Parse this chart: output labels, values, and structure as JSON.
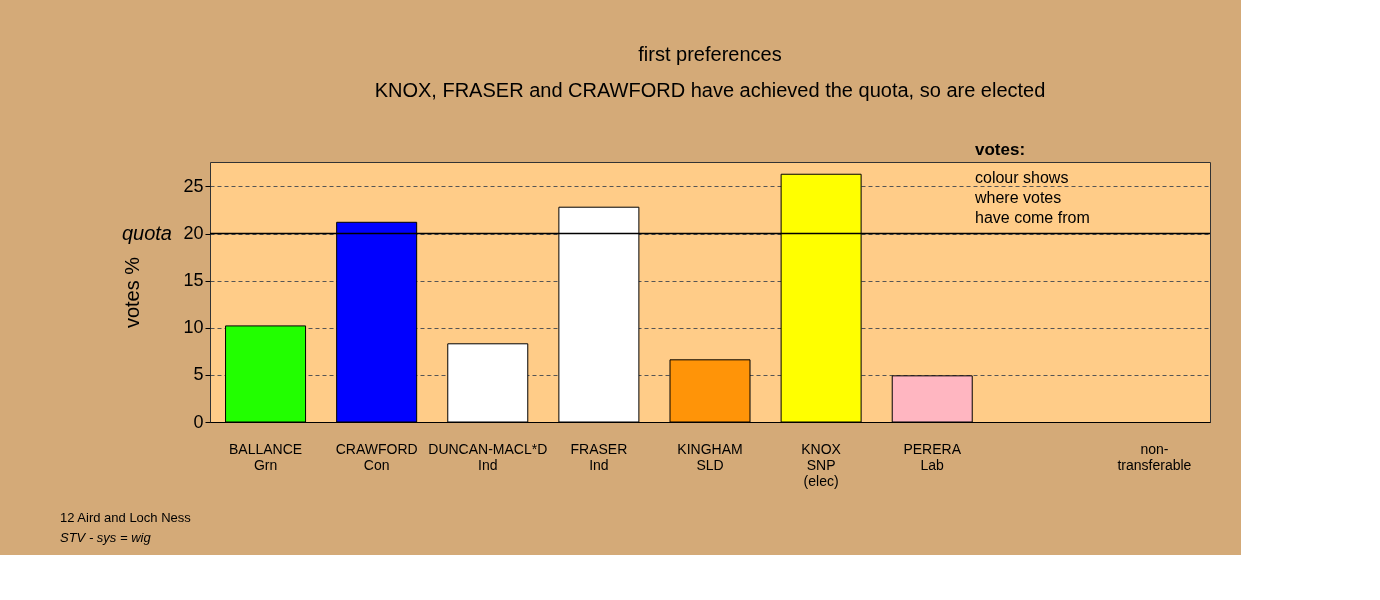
{
  "chart_data": {
    "type": "bar",
    "title": "first preferences",
    "subtitle": "KNOX, FRASER and CRAWFORD have achieved the quota, so are elected",
    "ylabel": "votes %",
    "categories": [
      "BALLANCE\nGrn",
      "CRAWFORD\nCon",
      "DUNCAN-MACL*D\nInd",
      "FRASER\nInd",
      "KINGHAM\nSLD",
      "KNOX\nSNP\n(elec)",
      "PERERA\nLab",
      null,
      "non-\ntransferable"
    ],
    "values": [
      10.2,
      21.2,
      8.3,
      22.8,
      6.6,
      26.3,
      4.9,
      null,
      null
    ],
    "colors": [
      "#22ff00",
      "#0000ff",
      "#ffffff",
      "#ffffff",
      "#ff9408",
      "#ffff00",
      "#ffb6c1",
      "#ffffff",
      "#ffffff"
    ],
    "ylim": [
      0,
      27.6
    ],
    "yticks": [
      0,
      5,
      10,
      15,
      20,
      25
    ],
    "grid": "y",
    "ref_lines": [
      {
        "axis": "y",
        "value": 20,
        "label": "quota",
        "color": "#000000",
        "line_style": "solid"
      }
    ],
    "annotations": [
      "votes:",
      "colour shows\nwhere votes\nhave come from",
      "12 Aird and Loch Ness",
      "STV - sys = wig"
    ]
  }
}
